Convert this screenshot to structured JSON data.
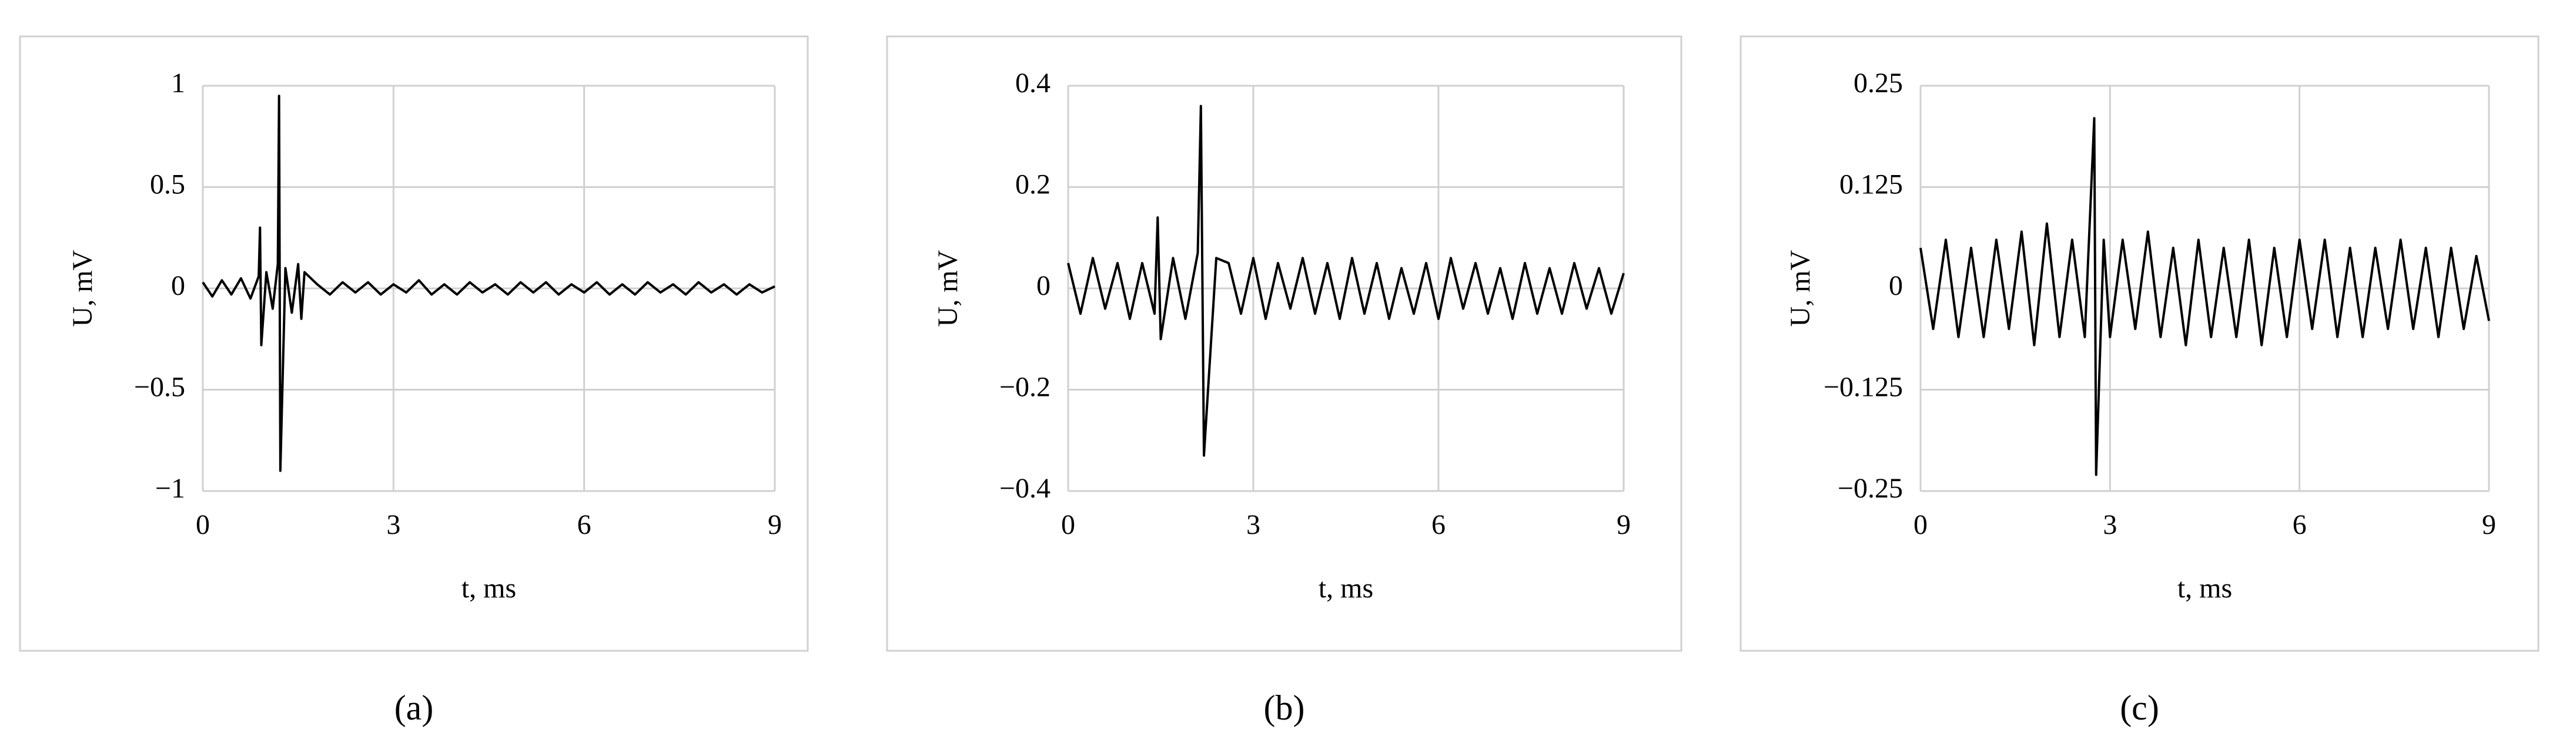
{
  "chart_data": [
    {
      "type": "line",
      "caption": "(a)",
      "xlabel": "t, ms",
      "ylabel": "U, mV",
      "xlim": [
        0,
        9
      ],
      "xticks": [
        0,
        3,
        6,
        9
      ],
      "ylim": [
        -1,
        1
      ],
      "yticks": [
        {
          "value": -1,
          "label": "−1"
        },
        {
          "value": -0.5,
          "label": "−0.5"
        },
        0,
        0.5,
        1
      ],
      "grid": true,
      "color": "#000000",
      "x": [
        0,
        0.15,
        0.3,
        0.45,
        0.6,
        0.75,
        0.88,
        0.9,
        0.92,
        1.0,
        1.1,
        1.18,
        1.2,
        1.22,
        1.3,
        1.4,
        1.5,
        1.55,
        1.6,
        1.8,
        2.0,
        2.2,
        2.4,
        2.6,
        2.8,
        3.0,
        3.2,
        3.4,
        3.6,
        3.8,
        4.0,
        4.2,
        4.4,
        4.6,
        4.8,
        5.0,
        5.2,
        5.4,
        5.6,
        5.8,
        6.0,
        6.2,
        6.4,
        6.6,
        6.8,
        7.0,
        7.2,
        7.4,
        7.6,
        7.8,
        8.0,
        8.2,
        8.4,
        8.6,
        8.8,
        9.0
      ],
      "values": [
        0.03,
        -0.04,
        0.04,
        -0.03,
        0.05,
        -0.05,
        0.06,
        0.3,
        -0.28,
        0.08,
        -0.1,
        0.12,
        0.95,
        -0.9,
        0.1,
        -0.12,
        0.12,
        -0.15,
        0.08,
        0.02,
        -0.03,
        0.03,
        -0.02,
        0.03,
        -0.03,
        0.02,
        -0.02,
        0.04,
        -0.03,
        0.02,
        -0.03,
        0.03,
        -0.02,
        0.02,
        -0.03,
        0.03,
        -0.02,
        0.03,
        -0.03,
        0.02,
        -0.02,
        0.03,
        -0.03,
        0.02,
        -0.03,
        0.03,
        -0.02,
        0.02,
        -0.03,
        0.03,
        -0.02,
        0.02,
        -0.03,
        0.02,
        -0.02,
        0.01
      ]
    },
    {
      "type": "line",
      "caption": "(b)",
      "xlabel": "t, ms",
      "ylabel": "U, mV",
      "xlim": [
        0,
        9
      ],
      "xticks": [
        0,
        3,
        6,
        9
      ],
      "ylim": [
        -0.4,
        0.4
      ],
      "yticks": [
        {
          "value": -0.4,
          "label": "−0.4"
        },
        {
          "value": -0.2,
          "label": "−0.2"
        },
        0,
        0.2,
        0.4
      ],
      "grid": true,
      "color": "#000000",
      "x": [
        0,
        0.2,
        0.4,
        0.6,
        0.8,
        1.0,
        1.2,
        1.4,
        1.45,
        1.5,
        1.7,
        1.9,
        2.1,
        2.15,
        2.2,
        2.4,
        2.6,
        2.8,
        3.0,
        3.2,
        3.4,
        3.6,
        3.8,
        4.0,
        4.2,
        4.4,
        4.6,
        4.8,
        5.0,
        5.2,
        5.4,
        5.6,
        5.8,
        6.0,
        6.2,
        6.4,
        6.6,
        6.8,
        7.0,
        7.2,
        7.4,
        7.6,
        7.8,
        8.0,
        8.2,
        8.4,
        8.6,
        8.8,
        9.0
      ],
      "values": [
        0.05,
        -0.05,
        0.06,
        -0.04,
        0.05,
        -0.06,
        0.05,
        -0.05,
        0.14,
        -0.1,
        0.06,
        -0.06,
        0.07,
        0.36,
        -0.33,
        0.06,
        0.05,
        -0.05,
        0.06,
        -0.06,
        0.05,
        -0.04,
        0.06,
        -0.05,
        0.05,
        -0.06,
        0.06,
        -0.05,
        0.05,
        -0.06,
        0.04,
        -0.05,
        0.05,
        -0.06,
        0.06,
        -0.04,
        0.05,
        -0.05,
        0.04,
        -0.06,
        0.05,
        -0.05,
        0.04,
        -0.05,
        0.05,
        -0.04,
        0.04,
        -0.05,
        0.03
      ]
    },
    {
      "type": "line",
      "caption": "(c)",
      "xlabel": "t, ms",
      "ylabel": "U, mV",
      "xlim": [
        0,
        9
      ],
      "xticks": [
        0,
        3,
        6,
        9
      ],
      "ylim": [
        -0.25,
        0.25
      ],
      "yticks": [
        {
          "value": -0.25,
          "label": "−0.25"
        },
        {
          "value": -0.125,
          "label": "−0.125"
        },
        0,
        0.125,
        0.25
      ],
      "grid": true,
      "color": "#000000",
      "x": [
        0,
        0.2,
        0.4,
        0.6,
        0.8,
        1.0,
        1.2,
        1.4,
        1.6,
        1.8,
        2.0,
        2.2,
        2.4,
        2.6,
        2.75,
        2.78,
        2.9,
        3.0,
        3.2,
        3.4,
        3.6,
        3.8,
        4.0,
        4.2,
        4.4,
        4.6,
        4.8,
        5.0,
        5.2,
        5.4,
        5.6,
        5.8,
        6.0,
        6.2,
        6.4,
        6.6,
        6.8,
        7.0,
        7.2,
        7.4,
        7.6,
        7.8,
        8.0,
        8.2,
        8.4,
        8.6,
        8.8,
        9.0
      ],
      "values": [
        0.05,
        -0.05,
        0.06,
        -0.06,
        0.05,
        -0.06,
        0.06,
        -0.05,
        0.07,
        -0.07,
        0.08,
        -0.06,
        0.06,
        -0.06,
        0.21,
        -0.23,
        0.06,
        -0.06,
        0.06,
        -0.05,
        0.07,
        -0.06,
        0.05,
        -0.07,
        0.06,
        -0.06,
        0.05,
        -0.06,
        0.06,
        -0.07,
        0.05,
        -0.06,
        0.06,
        -0.05,
        0.06,
        -0.06,
        0.05,
        -0.06,
        0.05,
        -0.05,
        0.06,
        -0.05,
        0.05,
        -0.06,
        0.05,
        -0.05,
        0.04,
        -0.04
      ]
    }
  ]
}
